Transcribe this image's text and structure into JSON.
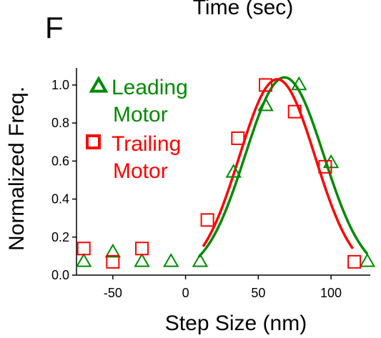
{
  "panel_letter": "F",
  "top_cut_label": "Time (sec)",
  "chart_data": {
    "type": "scatter",
    "title": "",
    "xlabel": "Step Size (nm)",
    "ylabel": "Normalized Freq.",
    "xlim": [
      -75,
      127
    ],
    "ylim": [
      0,
      1.09
    ],
    "x_ticks": [
      -50,
      0,
      50,
      100
    ],
    "y_ticks": [
      0.0,
      0.2,
      0.4,
      0.6,
      0.8,
      1.0
    ],
    "y_tick_labels": [
      "0.0",
      "0.2",
      "0.4",
      "0.6",
      "0.8",
      "1.0"
    ],
    "grid": false,
    "legend_position": "top-left",
    "series": [
      {
        "name": "Leading Motor",
        "legend_lines": [
          "Leading",
          "Motor"
        ],
        "marker": "triangle",
        "color": "#008a00",
        "points": [
          {
            "x": -70,
            "y": 0.07
          },
          {
            "x": -50,
            "y": 0.12
          },
          {
            "x": -30,
            "y": 0.07
          },
          {
            "x": -10,
            "y": 0.07
          },
          {
            "x": 10,
            "y": 0.07
          },
          {
            "x": 33,
            "y": 0.54
          },
          {
            "x": 55,
            "y": 0.89
          },
          {
            "x": 78,
            "y": 1.0
          },
          {
            "x": 100,
            "y": 0.59
          },
          {
            "x": 125,
            "y": 0.07
          }
        ],
        "fit": {
          "type": "gaussian",
          "amplitude": 1.04,
          "center": 68,
          "sigma": 27,
          "x_range": [
            9,
            125
          ]
        }
      },
      {
        "name": "Trailing Motor",
        "legend_lines": [
          "Trailing",
          "Motor"
        ],
        "marker": "square",
        "color": "#ff0000",
        "points": [
          {
            "x": -70,
            "y": 0.14
          },
          {
            "x": -50,
            "y": 0.07
          },
          {
            "x": -30,
            "y": 0.14
          },
          {
            "x": 15,
            "y": 0.29
          },
          {
            "x": 36,
            "y": 0.72
          },
          {
            "x": 55,
            "y": 1.0
          },
          {
            "x": 75,
            "y": 0.86
          },
          {
            "x": 96,
            "y": 0.57
          },
          {
            "x": 116,
            "y": 0.07
          }
        ],
        "fit": {
          "type": "gaussian",
          "amplitude": 1.03,
          "center": 63,
          "sigma": 26,
          "x_range": [
            12,
            115
          ]
        }
      }
    ]
  }
}
